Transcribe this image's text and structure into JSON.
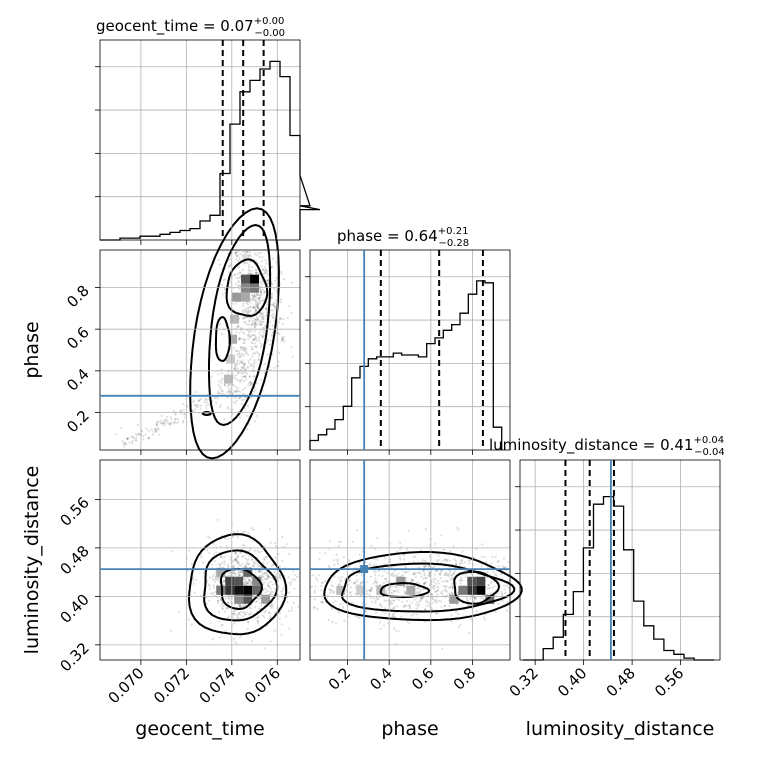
{
  "chart_data": {
    "type": "corner",
    "parameters": [
      "geocent_time",
      "phase",
      "luminosity_distance"
    ],
    "titles": {
      "geocent_time": {
        "param": "geocent_time",
        "median": "0.07",
        "plus": "+0.00",
        "minus": "−0.00"
      },
      "phase": {
        "param": "phase",
        "median": "0.64",
        "plus": "+0.21",
        "minus": "−0.28"
      },
      "luminosity_distance": {
        "param": "luminosity_distance",
        "median": "0.41",
        "plus": "+0.04",
        "minus": "−0.04"
      }
    },
    "axes": {
      "geocent_time": {
        "range": [
          0.0682,
          0.077
        ],
        "ticks": [
          "0.070",
          "0.072",
          "0.074",
          "0.076"
        ],
        "tick_values": [
          0.07,
          0.072,
          0.074,
          0.076
        ]
      },
      "phase": {
        "range": [
          0.02,
          0.98
        ],
        "ticks": [
          "0.2",
          "0.4",
          "0.6",
          "0.8"
        ],
        "tick_values": [
          0.2,
          0.4,
          0.6,
          0.8
        ]
      },
      "luminosity_distance": {
        "range": [
          0.295,
          0.625
        ],
        "ticks": [
          "0.32",
          "0.40",
          "0.48",
          "0.56"
        ],
        "tick_values": [
          0.32,
          0.4,
          0.48,
          0.56
        ]
      }
    },
    "truths": {
      "phase": 0.28,
      "luminosity_distance": 0.445
    },
    "quantiles": {
      "geocent_time": [
        0.0736,
        0.0745,
        0.0754
      ],
      "phase": [
        0.36,
        0.64,
        0.85
      ],
      "luminosity_distance": [
        0.37,
        0.41,
        0.45
      ]
    },
    "histograms": {
      "geocent_time": {
        "edges_start": 0.0682,
        "bin_width": 0.00044,
        "counts": [
          0,
          0,
          0.01,
          0.01,
          0.02,
          0.02,
          0.03,
          0.04,
          0.05,
          0.06,
          0.1,
          0.13,
          0.35,
          0.61,
          0.78,
          0.84,
          0.9,
          0.94,
          0.86,
          0.55,
          0.34,
          0.18,
          0.16
        ]
      },
      "phase": {
        "edges_start": 0.02,
        "bin_width": 0.04,
        "counts": [
          0.05,
          0.08,
          0.11,
          0.16,
          0.23,
          0.38,
          0.44,
          0.48,
          0.49,
          0.49,
          0.51,
          0.5,
          0.5,
          0.49,
          0.56,
          0.59,
          0.63,
          0.66,
          0.72,
          0.82,
          0.89,
          0.88,
          0.12
        ]
      },
      "luminosity_distance": {
        "edges_start": 0.3,
        "bin_width": 0.0166,
        "counts": [
          0,
          0,
          0.06,
          0.12,
          0.24,
          0.36,
          0.59,
          0.82,
          0.86,
          0.81,
          0.58,
          0.31,
          0.18,
          0.11,
          0.05,
          0.03,
          0.01,
          0,
          0
        ]
      }
    },
    "density_peaks": {
      "phase_vs_geocent_time": {
        "x": 0.075,
        "y": 0.84
      },
      "luminosity_distance_vs_geocent_time": {
        "x": 0.0747,
        "y": 0.41
      },
      "luminosity_distance_vs_phase": {
        "x": 0.84,
        "y": 0.41
      }
    },
    "grid": true
  }
}
